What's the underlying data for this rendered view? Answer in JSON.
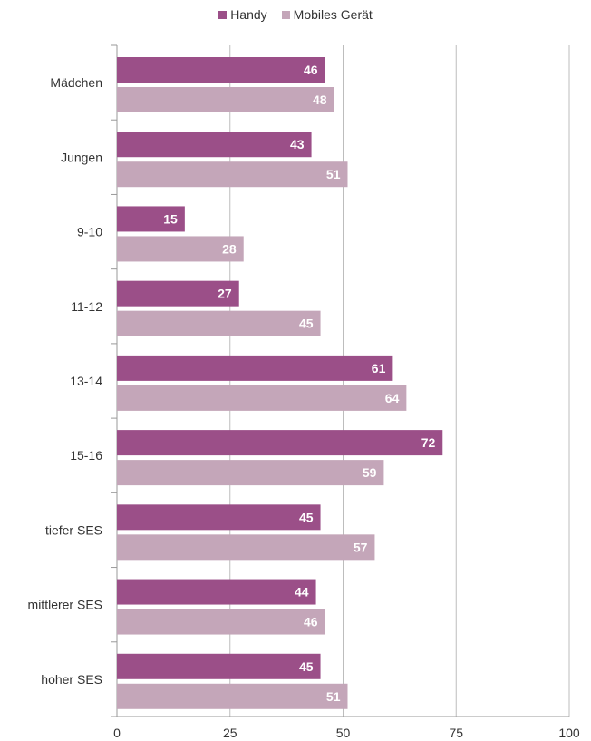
{
  "chart_data": {
    "type": "bar",
    "orientation": "horizontal",
    "categories": [
      "Mädchen",
      "Jungen",
      "9-10",
      "11-12",
      "13-14",
      "15-16",
      "tiefer SES",
      "mittlerer SES",
      "hoher SES"
    ],
    "series": [
      {
        "name": "Handy",
        "color": "#9b4f88",
        "values": [
          46,
          43,
          15,
          27,
          61,
          72,
          45,
          44,
          45
        ]
      },
      {
        "name": "Mobiles Gerät",
        "color": "#c4a6b9",
        "values": [
          48,
          51,
          28,
          45,
          64,
          59,
          57,
          46,
          51
        ]
      }
    ],
    "xlim": [
      0,
      100
    ],
    "xticks": [
      "0",
      "25",
      "50",
      "75",
      "100"
    ],
    "grid": "vertical",
    "legend": "top-center",
    "data_labels": true
  }
}
